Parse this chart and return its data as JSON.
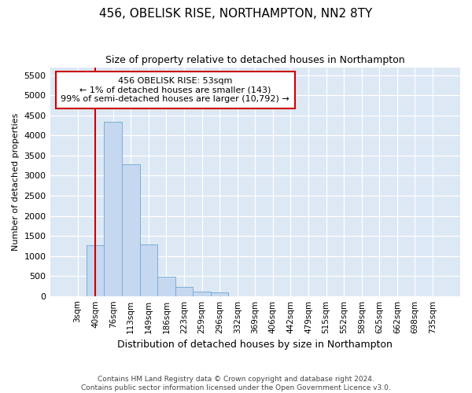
{
  "title": "456, OBELISK RISE, NORTHAMPTON, NN2 8TY",
  "subtitle": "Size of property relative to detached houses in Northampton",
  "xlabel": "Distribution of detached houses by size in Northampton",
  "ylabel": "Number of detached properties",
  "footer_line1": "Contains HM Land Registry data © Crown copyright and database right 2024.",
  "footer_line2": "Contains public sector information licensed under the Open Government Licence v3.0.",
  "annotation_line1": "456 OBELISK RISE: 53sqm",
  "annotation_line2": "← 1% of detached houses are smaller (143)",
  "annotation_line3": "99% of semi-detached houses are larger (10,792) →",
  "bar_color": "#c5d8f0",
  "bar_edge_color": "#7aadd4",
  "vline_color": "#cc0000",
  "background_color": "#dde8f5",
  "annotation_box_color": "#ffffff",
  "annotation_box_edge": "#cc0000",
  "categories": [
    "3sqm",
    "40sqm",
    "76sqm",
    "113sqm",
    "149sqm",
    "186sqm",
    "223sqm",
    "259sqm",
    "296sqm",
    "332sqm",
    "369sqm",
    "406sqm",
    "442sqm",
    "479sqm",
    "515sqm",
    "552sqm",
    "589sqm",
    "625sqm",
    "662sqm",
    "698sqm",
    "735sqm"
  ],
  "values": [
    0,
    1270,
    4350,
    3280,
    1280,
    480,
    230,
    110,
    90,
    0,
    0,
    0,
    0,
    0,
    0,
    0,
    0,
    0,
    0,
    0,
    0
  ],
  "ylim": [
    0,
    5700
  ],
  "yticks": [
    0,
    500,
    1000,
    1500,
    2000,
    2500,
    3000,
    3500,
    4000,
    4500,
    5000,
    5500
  ],
  "vline_x_index": 1,
  "title_fontsize": 11,
  "subtitle_fontsize": 9
}
